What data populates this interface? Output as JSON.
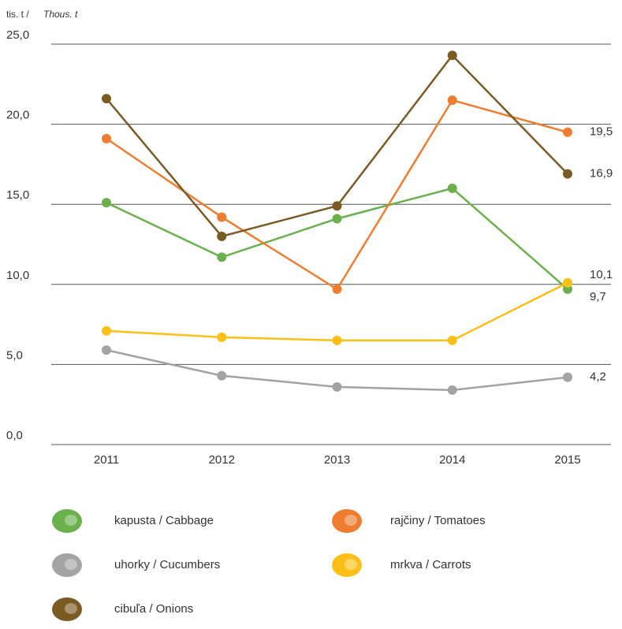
{
  "chart_data": {
    "type": "line",
    "ylabel": {
      "sk": "tis. t /",
      "en": "Thous. t"
    },
    "categories": [
      "2011",
      "2012",
      "2013",
      "2014",
      "2015"
    ],
    "ylim": [
      0,
      25
    ],
    "yticks": [
      {
        "value": 0,
        "label": "0,0"
      },
      {
        "value": 5,
        "label": "5,0"
      },
      {
        "value": 10,
        "label": "10,0"
      },
      {
        "value": 15,
        "label": "15,0"
      },
      {
        "value": 20,
        "label": "20,0"
      },
      {
        "value": 25,
        "label": "25,0"
      }
    ],
    "grid": true,
    "series": [
      {
        "name": "kapusta / Cabbage",
        "color": "#6ab04c",
        "values": [
          15.1,
          11.7,
          14.1,
          16.0,
          9.7
        ],
        "value_labels": [
          null,
          null,
          null,
          null,
          "9,7"
        ]
      },
      {
        "name": "rajčiny / Tomatoes",
        "color": "#ef7d2f",
        "values": [
          19.1,
          14.2,
          9.7,
          21.5,
          19.5
        ],
        "value_labels": [
          null,
          null,
          null,
          null,
          "19,5"
        ]
      },
      {
        "name": "uhorky / Cucumbers",
        "color": "#a3a3a3",
        "values": [
          5.9,
          4.3,
          3.6,
          3.4,
          4.2
        ],
        "value_labels": [
          null,
          null,
          null,
          null,
          "4,2"
        ]
      },
      {
        "name": "mrkva / Carrots",
        "color": "#fbbf16",
        "values": [
          7.1,
          6.7,
          6.5,
          6.5,
          10.1
        ],
        "value_labels": [
          null,
          null,
          null,
          null,
          "10,1"
        ]
      },
      {
        "name": "cibuľa / Onions",
        "color": "#7b5a23",
        "values": [
          21.6,
          13.0,
          14.9,
          24.3,
          16.9
        ],
        "value_labels": [
          null,
          null,
          null,
          null,
          "16,9"
        ]
      }
    ]
  }
}
